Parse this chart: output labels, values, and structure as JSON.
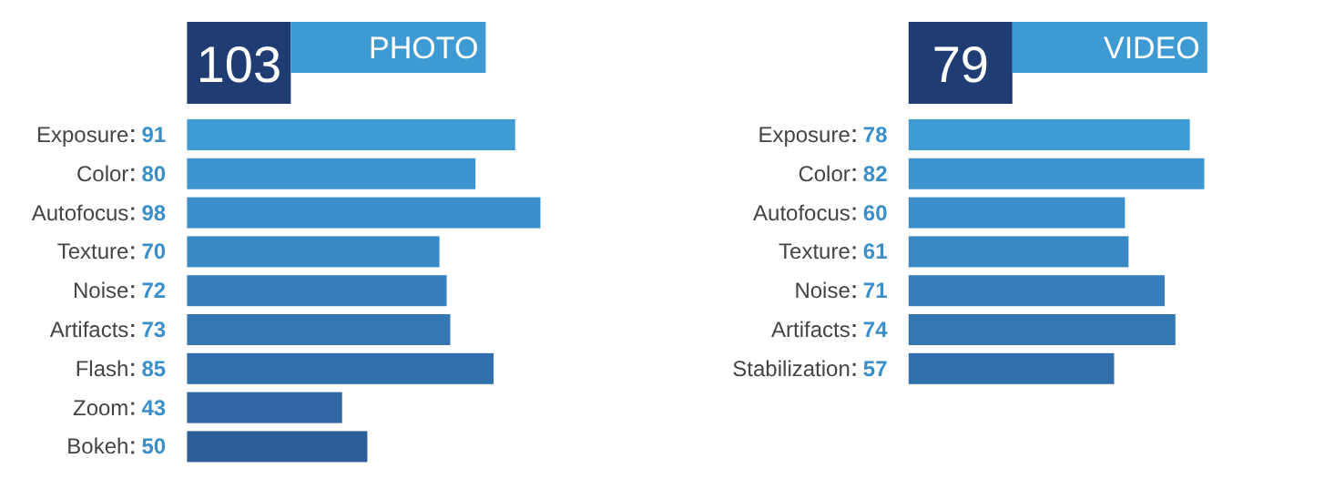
{
  "chart_data": [
    {
      "type": "bar",
      "orientation": "horizontal",
      "title": "PHOTO",
      "annotations": [
        "103"
      ],
      "categories": [
        "Exposure",
        "Color",
        "Autofocus",
        "Texture",
        "Noise",
        "Artifacts",
        "Flash",
        "Zoom",
        "Bokeh"
      ],
      "values": [
        91,
        80,
        98,
        70,
        72,
        73,
        85,
        43,
        50
      ],
      "colors": [
        "#3f9bd3",
        "#3d95cf",
        "#3a8fca",
        "#3888c4",
        "#367fbc",
        "#3477b3",
        "#3270ad",
        "#2f66a3",
        "#2d5e9b"
      ],
      "data_labels": true
    },
    {
      "type": "bar",
      "orientation": "horizontal",
      "title": "VIDEO",
      "annotations": [
        "79"
      ],
      "categories": [
        "Exposure",
        "Color",
        "Autofocus",
        "Texture",
        "Noise",
        "Artifacts",
        "Stabilization"
      ],
      "values": [
        78,
        82,
        60,
        61,
        71,
        74,
        57
      ],
      "colors": [
        "#3f9bd3",
        "#3d95cf",
        "#3a8fca",
        "#3888c4",
        "#367fbc",
        "#3477b3",
        "#3270ad"
      ],
      "data_labels": true
    }
  ]
}
